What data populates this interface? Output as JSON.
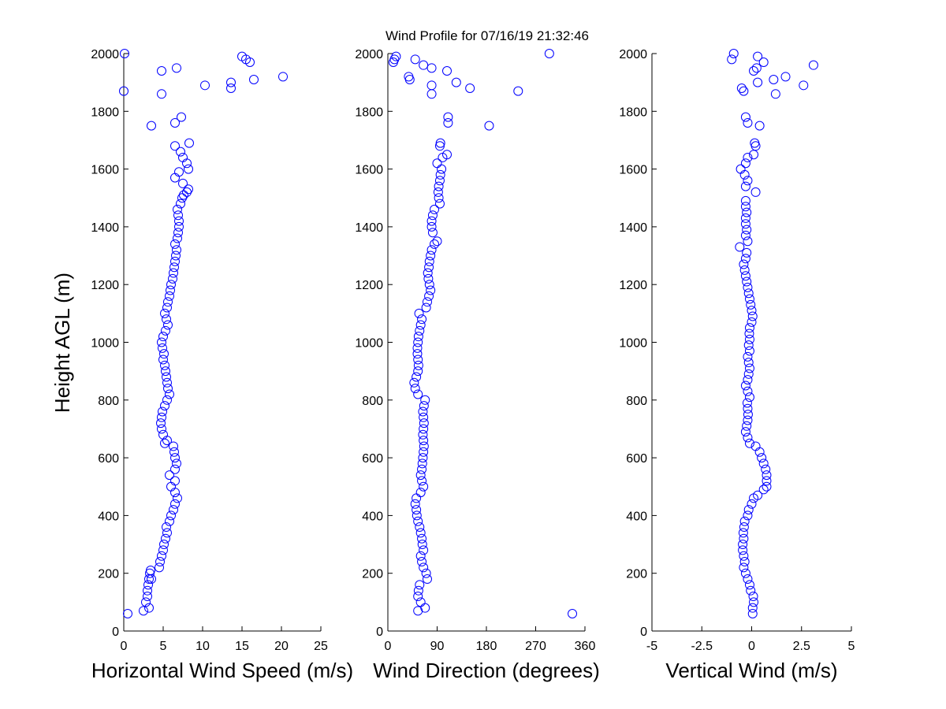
{
  "figure": {
    "title": "Wind Profile for  07/16/19 21:32:46",
    "ylabel": "Height AGL (m)",
    "marker_color": "#0000ff",
    "axis_color": "#000000",
    "background": "#ffffff"
  },
  "chart_data": [
    {
      "type": "scatter",
      "name": "horizontal-wind-speed",
      "xlabel": "Horizontal Wind Speed (m/s)",
      "ylabel": "Height AGL (m)",
      "xlim": [
        0,
        25
      ],
      "ylim": [
        0,
        2000
      ],
      "xticks": [
        0,
        5,
        10,
        15,
        20,
        25
      ],
      "xtick_labels": [
        "0",
        "5",
        "10",
        "15",
        "20",
        "25"
      ],
      "yticks": [
        0,
        200,
        400,
        600,
        800,
        1000,
        1200,
        1400,
        1600,
        1800,
        2000
      ],
      "ytick_labels": [
        "0",
        "200",
        "400",
        "600",
        "800",
        "1000",
        "1200",
        "1400",
        "1600",
        "1800",
        "2000"
      ],
      "grid": false,
      "points": [
        [
          0.5,
          60
        ],
        [
          2.5,
          70
        ],
        [
          3.2,
          80
        ],
        [
          2.8,
          100
        ],
        [
          3.0,
          120
        ],
        [
          3.0,
          140
        ],
        [
          3.1,
          160
        ],
        [
          3.2,
          180
        ],
        [
          3.5,
          180
        ],
        [
          3.3,
          200
        ],
        [
          3.4,
          210
        ],
        [
          4.5,
          220
        ],
        [
          4.6,
          240
        ],
        [
          4.8,
          260
        ],
        [
          5.0,
          280
        ],
        [
          5.1,
          300
        ],
        [
          5.3,
          320
        ],
        [
          5.5,
          340
        ],
        [
          5.4,
          360
        ],
        [
          5.8,
          380
        ],
        [
          6.0,
          400
        ],
        [
          6.3,
          420
        ],
        [
          6.5,
          440
        ],
        [
          6.8,
          460
        ],
        [
          6.5,
          480
        ],
        [
          6.0,
          500
        ],
        [
          6.5,
          520
        ],
        [
          5.8,
          540
        ],
        [
          6.5,
          560
        ],
        [
          6.7,
          580
        ],
        [
          6.5,
          600
        ],
        [
          6.4,
          620
        ],
        [
          6.3,
          640
        ],
        [
          5.2,
          650
        ],
        [
          5.5,
          660
        ],
        [
          5.0,
          680
        ],
        [
          4.8,
          700
        ],
        [
          4.7,
          720
        ],
        [
          4.8,
          740
        ],
        [
          4.9,
          760
        ],
        [
          5.2,
          780
        ],
        [
          5.5,
          800
        ],
        [
          5.8,
          820
        ],
        [
          5.6,
          840
        ],
        [
          5.5,
          860
        ],
        [
          5.4,
          880
        ],
        [
          5.3,
          900
        ],
        [
          5.2,
          920
        ],
        [
          5.0,
          940
        ],
        [
          5.1,
          960
        ],
        [
          4.9,
          980
        ],
        [
          4.8,
          1000
        ],
        [
          5.0,
          1020
        ],
        [
          5.3,
          1040
        ],
        [
          5.6,
          1060
        ],
        [
          5.4,
          1080
        ],
        [
          5.2,
          1100
        ],
        [
          5.5,
          1120
        ],
        [
          5.6,
          1140
        ],
        [
          5.8,
          1160
        ],
        [
          5.9,
          1180
        ],
        [
          6.0,
          1200
        ],
        [
          6.2,
          1220
        ],
        [
          6.3,
          1240
        ],
        [
          6.4,
          1260
        ],
        [
          6.5,
          1280
        ],
        [
          6.6,
          1300
        ],
        [
          6.7,
          1320
        ],
        [
          6.5,
          1340
        ],
        [
          6.8,
          1360
        ],
        [
          6.9,
          1380
        ],
        [
          7.0,
          1400
        ],
        [
          7.0,
          1420
        ],
        [
          6.9,
          1440
        ],
        [
          6.8,
          1460
        ],
        [
          7.2,
          1480
        ],
        [
          7.4,
          1500
        ],
        [
          7.6,
          1510
        ],
        [
          8.0,
          1520
        ],
        [
          8.2,
          1530
        ],
        [
          7.5,
          1550
        ],
        [
          6.5,
          1570
        ],
        [
          7.0,
          1590
        ],
        [
          8.2,
          1600
        ],
        [
          8.0,
          1620
        ],
        [
          7.5,
          1640
        ],
        [
          7.2,
          1660
        ],
        [
          6.5,
          1680
        ],
        [
          8.3,
          1690
        ],
        [
          6.5,
          1760
        ],
        [
          7.3,
          1780
        ],
        [
          3.5,
          1750
        ],
        [
          0,
          1870
        ],
        [
          4.8,
          1860
        ],
        [
          10.3,
          1890
        ],
        [
          13.6,
          1880
        ],
        [
          13.6,
          1900
        ],
        [
          16.5,
          1910
        ],
        [
          20.2,
          1920
        ],
        [
          4.8,
          1940
        ],
        [
          6.7,
          1950
        ],
        [
          16.0,
          1970
        ],
        [
          15.5,
          1980
        ],
        [
          15.0,
          1990
        ],
        [
          0.1,
          2000
        ]
      ]
    },
    {
      "type": "scatter",
      "name": "wind-direction",
      "xlabel": "Wind Direction (degrees)",
      "ylabel": "",
      "xlim": [
        0,
        360
      ],
      "ylim": [
        0,
        2000
      ],
      "xticks": [
        0,
        90,
        180,
        270,
        360
      ],
      "xtick_labels": [
        "0",
        "90",
        "180",
        "270",
        "360"
      ],
      "yticks": [
        0,
        200,
        400,
        600,
        800,
        1000,
        1200,
        1400,
        1600,
        1800,
        2000
      ],
      "ytick_labels": [
        "0",
        "200",
        "400",
        "600",
        "800",
        "1000",
        "1200",
        "1400",
        "1600",
        "1800",
        "2000"
      ],
      "grid": false,
      "points": [
        [
          55,
          70
        ],
        [
          68,
          80
        ],
        [
          60,
          100
        ],
        [
          55,
          120
        ],
        [
          56,
          140
        ],
        [
          58,
          160
        ],
        [
          72,
          180
        ],
        [
          70,
          200
        ],
        [
          65,
          220
        ],
        [
          62,
          240
        ],
        [
          60,
          260
        ],
        [
          65,
          280
        ],
        [
          63,
          300
        ],
        [
          62,
          320
        ],
        [
          60,
          340
        ],
        [
          58,
          360
        ],
        [
          55,
          380
        ],
        [
          53,
          400
        ],
        [
          52,
          420
        ],
        [
          50,
          440
        ],
        [
          52,
          460
        ],
        [
          60,
          480
        ],
        [
          65,
          500
        ],
        [
          62,
          520
        ],
        [
          60,
          540
        ],
        [
          62,
          560
        ],
        [
          63,
          580
        ],
        [
          64,
          600
        ],
        [
          65,
          620
        ],
        [
          66,
          640
        ],
        [
          65,
          660
        ],
        [
          64,
          680
        ],
        [
          65,
          700
        ],
        [
          66,
          720
        ],
        [
          65,
          740
        ],
        [
          64,
          760
        ],
        [
          66,
          780
        ],
        [
          68,
          800
        ],
        [
          55,
          820
        ],
        [
          50,
          840
        ],
        [
          48,
          860
        ],
        [
          52,
          880
        ],
        [
          55,
          900
        ],
        [
          56,
          920
        ],
        [
          55,
          940
        ],
        [
          54,
          960
        ],
        [
          54,
          980
        ],
        [
          55,
          1000
        ],
        [
          56,
          1020
        ],
        [
          58,
          1040
        ],
        [
          60,
          1060
        ],
        [
          62,
          1080
        ],
        [
          57,
          1100
        ],
        [
          70,
          1120
        ],
        [
          72,
          1140
        ],
        [
          75,
          1160
        ],
        [
          78,
          1180
        ],
        [
          76,
          1200
        ],
        [
          74,
          1220
        ],
        [
          73,
          1240
        ],
        [
          75,
          1260
        ],
        [
          76,
          1280
        ],
        [
          78,
          1300
        ],
        [
          80,
          1320
        ],
        [
          85,
          1340
        ],
        [
          90,
          1350
        ],
        [
          82,
          1380
        ],
        [
          80,
          1400
        ],
        [
          80,
          1420
        ],
        [
          82,
          1440
        ],
        [
          85,
          1460
        ],
        [
          95,
          1480
        ],
        [
          93,
          1500
        ],
        [
          92,
          1520
        ],
        [
          93,
          1540
        ],
        [
          95,
          1560
        ],
        [
          96,
          1580
        ],
        [
          98,
          1600
        ],
        [
          90,
          1620
        ],
        [
          100,
          1640
        ],
        [
          108,
          1650
        ],
        [
          95,
          1680
        ],
        [
          96,
          1690
        ],
        [
          110,
          1760
        ],
        [
          110,
          1780
        ],
        [
          185,
          1750
        ],
        [
          238,
          1870
        ],
        [
          80,
          1860
        ],
        [
          150,
          1880
        ],
        [
          80,
          1890
        ],
        [
          125,
          1900
        ],
        [
          40,
          1910
        ],
        [
          38,
          1920
        ],
        [
          108,
          1940
        ],
        [
          80,
          1950
        ],
        [
          65,
          1960
        ],
        [
          10,
          1970
        ],
        [
          12,
          1980
        ],
        [
          50,
          1980
        ],
        [
          15,
          1990
        ],
        [
          295,
          2000
        ],
        [
          337,
          60
        ]
      ]
    },
    {
      "type": "scatter",
      "name": "vertical-wind",
      "xlabel": "Vertical Wind (m/s)",
      "ylabel": "",
      "xlim": [
        -5,
        5
      ],
      "ylim": [
        0,
        2000
      ],
      "xticks": [
        -5,
        -2.5,
        0,
        2.5,
        5
      ],
      "xtick_labels": [
        "-5",
        "-2.5",
        "0",
        "2.5",
        "5"
      ],
      "yticks": [
        0,
        200,
        400,
        600,
        800,
        1000,
        1200,
        1400,
        1600,
        1800,
        2000
      ],
      "ytick_labels": [
        "0",
        "200",
        "400",
        "600",
        "800",
        "1000",
        "1200",
        "1400",
        "1600",
        "1800",
        "2000"
      ],
      "grid": false,
      "points": [
        [
          0.05,
          60
        ],
        [
          0.05,
          80
        ],
        [
          0.1,
          100
        ],
        [
          0.08,
          120
        ],
        [
          -0.05,
          140
        ],
        [
          -0.1,
          160
        ],
        [
          -0.2,
          180
        ],
        [
          -0.3,
          200
        ],
        [
          -0.4,
          220
        ],
        [
          -0.35,
          240
        ],
        [
          -0.4,
          260
        ],
        [
          -0.45,
          280
        ],
        [
          -0.45,
          300
        ],
        [
          -0.4,
          320
        ],
        [
          -0.42,
          340
        ],
        [
          -0.38,
          360
        ],
        [
          -0.35,
          380
        ],
        [
          -0.2,
          400
        ],
        [
          -0.15,
          420
        ],
        [
          0.0,
          440
        ],
        [
          0.1,
          460
        ],
        [
          0.3,
          470
        ],
        [
          0.6,
          490
        ],
        [
          0.75,
          500
        ],
        [
          0.75,
          520
        ],
        [
          0.75,
          540
        ],
        [
          0.7,
          560
        ],
        [
          0.6,
          580
        ],
        [
          0.5,
          600
        ],
        [
          0.4,
          620
        ],
        [
          0.2,
          640
        ],
        [
          -0.1,
          650
        ],
        [
          -0.2,
          670
        ],
        [
          -0.3,
          690
        ],
        [
          -0.25,
          710
        ],
        [
          -0.2,
          730
        ],
        [
          -0.18,
          750
        ],
        [
          -0.2,
          770
        ],
        [
          -0.22,
          790
        ],
        [
          -0.1,
          810
        ],
        [
          -0.2,
          830
        ],
        [
          -0.3,
          850
        ],
        [
          -0.2,
          870
        ],
        [
          -0.15,
          890
        ],
        [
          -0.1,
          910
        ],
        [
          -0.15,
          930
        ],
        [
          -0.2,
          950
        ],
        [
          -0.1,
          970
        ],
        [
          -0.15,
          990
        ],
        [
          -0.1,
          1010
        ],
        [
          -0.12,
          1030
        ],
        [
          -0.1,
          1050
        ],
        [
          0.0,
          1070
        ],
        [
          0.05,
          1090
        ],
        [
          0.0,
          1110
        ],
        [
          -0.05,
          1130
        ],
        [
          -0.1,
          1150
        ],
        [
          -0.15,
          1170
        ],
        [
          -0.2,
          1190
        ],
        [
          -0.25,
          1210
        ],
        [
          -0.3,
          1230
        ],
        [
          -0.35,
          1250
        ],
        [
          -0.4,
          1270
        ],
        [
          -0.3,
          1290
        ],
        [
          -0.25,
          1310
        ],
        [
          -0.6,
          1330
        ],
        [
          -0.2,
          1350
        ],
        [
          -0.3,
          1370
        ],
        [
          -0.25,
          1390
        ],
        [
          -0.3,
          1410
        ],
        [
          -0.3,
          1430
        ],
        [
          -0.25,
          1450
        ],
        [
          -0.3,
          1470
        ],
        [
          -0.3,
          1490
        ],
        [
          0.2,
          1520
        ],
        [
          -0.3,
          1540
        ],
        [
          -0.2,
          1560
        ],
        [
          -0.35,
          1580
        ],
        [
          -0.55,
          1600
        ],
        [
          -0.3,
          1620
        ],
        [
          -0.2,
          1640
        ],
        [
          0.1,
          1650
        ],
        [
          0.2,
          1680
        ],
        [
          0.15,
          1690
        ],
        [
          -0.3,
          1780
        ],
        [
          -0.2,
          1760
        ],
        [
          0.4,
          1750
        ],
        [
          -0.5,
          1880
        ],
        [
          -0.4,
          1870
        ],
        [
          1.2,
          1860
        ],
        [
          2.6,
          1890
        ],
        [
          0.3,
          1900
        ],
        [
          1.1,
          1910
        ],
        [
          1.7,
          1920
        ],
        [
          0.1,
          1940
        ],
        [
          0.25,
          1950
        ],
        [
          3.1,
          1960
        ],
        [
          0.6,
          1970
        ],
        [
          -1.0,
          1980
        ],
        [
          0.3,
          1990
        ],
        [
          -0.9,
          2000
        ]
      ]
    }
  ]
}
